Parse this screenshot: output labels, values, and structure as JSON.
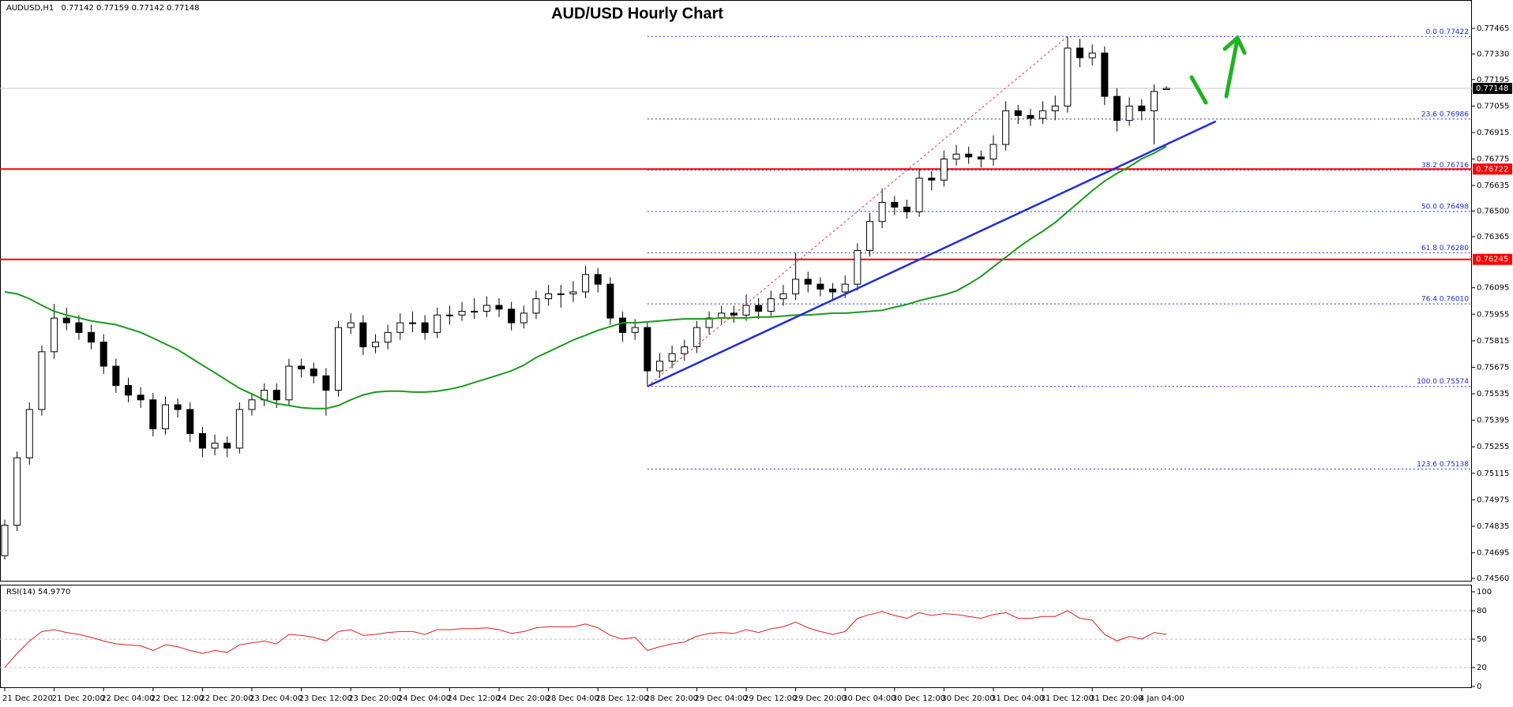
{
  "chart_data": [
    {
      "type": "candlestick",
      "symbol": "AUDUSD,H1",
      "title": "AUD/USD Hourly Chart",
      "categories": [
        "21 Dec 2020",
        null,
        null,
        null,
        "21 Dec 20:00",
        null,
        null,
        null,
        "22 Dec 04:00",
        null,
        null,
        null,
        "22 Dec 12:00",
        null,
        null,
        null,
        "22 Dec 20:00",
        null,
        null,
        null,
        "23 Dec 04:00",
        null,
        null,
        null,
        "23 Dec 12:00",
        null,
        null,
        null,
        "23 Dec 20:00",
        null,
        null,
        null,
        "24 Dec 04:00",
        null,
        null,
        null,
        "24 Dec 12:00",
        null,
        null,
        null,
        "24 Dec 20:00",
        null,
        null,
        null,
        "28 Dec 04:00",
        null,
        null,
        null,
        "28 Dec 12:00",
        null,
        null,
        null,
        "28 Dec 20:00",
        null,
        null,
        null,
        "29 Dec 04:00",
        null,
        null,
        null,
        "29 Dec 12:00",
        null,
        null,
        null,
        "29 Dec 20:00",
        null,
        null,
        null,
        "30 Dec 04:00",
        null,
        null,
        null,
        "30 Dec 12:00",
        null,
        null,
        null,
        "30 Dec 20:00",
        null,
        null,
        null,
        "31 Dec 04:00",
        null,
        null,
        null,
        "31 Dec 12:00",
        null,
        null,
        null,
        "31 Dec 20:00",
        null,
        null,
        null,
        "4 Jan 04:00",
        null,
        null
      ],
      "ohlc": [
        [
          0.7468,
          0.7487,
          0.7466,
          0.74841
        ],
        [
          0.74841,
          0.7523,
          0.7481,
          0.75197
        ],
        [
          0.75197,
          0.7549,
          0.7516,
          0.75452
        ],
        [
          0.75452,
          0.7579,
          0.7542,
          0.75757
        ],
        [
          0.75757,
          0.7601,
          0.7572,
          0.75935
        ],
        [
          0.75935,
          0.7599,
          0.7587,
          0.7591
        ],
        [
          0.7591,
          0.7595,
          0.7582,
          0.75859
        ],
        [
          0.75859,
          0.759,
          0.7577,
          0.75808
        ],
        [
          0.75808,
          0.7585,
          0.7564,
          0.75681
        ],
        [
          0.75681,
          0.7572,
          0.7554,
          0.75579
        ],
        [
          0.75579,
          0.7562,
          0.7549,
          0.75528
        ],
        [
          0.75528,
          0.7557,
          0.7546,
          0.75503
        ],
        [
          0.75503,
          0.7554,
          0.7531,
          0.7535
        ],
        [
          0.7535,
          0.7552,
          0.7532,
          0.75477
        ],
        [
          0.75477,
          0.7551,
          0.7541,
          0.75452
        ],
        [
          0.75452,
          0.7549,
          0.7528,
          0.75325
        ],
        [
          0.75325,
          0.7536,
          0.752,
          0.75248
        ],
        [
          0.75248,
          0.7532,
          0.7521,
          0.75274
        ],
        [
          0.75274,
          0.7531,
          0.752,
          0.75248
        ],
        [
          0.75248,
          0.7549,
          0.7522,
          0.75452
        ],
        [
          0.75452,
          0.7554,
          0.7542,
          0.75503
        ],
        [
          0.75503,
          0.7559,
          0.7547,
          0.75554
        ],
        [
          0.75554,
          0.7559,
          0.7546,
          0.75503
        ],
        [
          0.75503,
          0.7572,
          0.7547,
          0.75681
        ],
        [
          0.75681,
          0.7572,
          0.7562,
          0.75666
        ],
        [
          0.75666,
          0.757,
          0.7559,
          0.7563
        ],
        [
          0.7563,
          0.7567,
          0.7542,
          0.75554
        ],
        [
          0.75554,
          0.7592,
          0.7552,
          0.75885
        ],
        [
          0.75885,
          0.7596,
          0.7585,
          0.7591
        ],
        [
          0.7591,
          0.7595,
          0.7574,
          0.75783
        ],
        [
          0.75783,
          0.7585,
          0.7575,
          0.75808
        ],
        [
          0.75808,
          0.759,
          0.7577,
          0.75859
        ],
        [
          0.75859,
          0.7596,
          0.7582,
          0.7591
        ],
        [
          0.7591,
          0.7597,
          0.7586,
          0.7591
        ],
        [
          0.7591,
          0.7595,
          0.7582,
          0.75859
        ],
        [
          0.75859,
          0.7599,
          0.7583,
          0.75951
        ],
        [
          0.75951,
          0.76,
          0.759,
          0.75951
        ],
        [
          0.75951,
          0.7602,
          0.7592,
          0.75971
        ],
        [
          0.75971,
          0.7604,
          0.7593,
          0.75971
        ],
        [
          0.75971,
          0.7605,
          0.7594,
          0.76002
        ],
        [
          0.76002,
          0.7604,
          0.7594,
          0.75982
        ],
        [
          0.75982,
          0.7602,
          0.7587,
          0.7591
        ],
        [
          0.7591,
          0.76,
          0.7588,
          0.75961
        ],
        [
          0.75961,
          0.7608,
          0.7593,
          0.76037
        ],
        [
          0.76037,
          0.7611,
          0.76,
          0.76063
        ],
        [
          0.76063,
          0.7611,
          0.7599,
          0.76063
        ],
        [
          0.76063,
          0.7613,
          0.7602,
          0.76073
        ],
        [
          0.76073,
          0.7621,
          0.7604,
          0.76165
        ],
        [
          0.76165,
          0.762,
          0.7607,
          0.76114
        ],
        [
          0.76114,
          0.7615,
          0.759,
          0.75935
        ],
        [
          0.75935,
          0.7597,
          0.7581,
          0.75859
        ],
        [
          0.75859,
          0.7593,
          0.7582,
          0.75885
        ],
        [
          0.75885,
          0.7591,
          0.75574,
          0.75656
        ],
        [
          0.75656,
          0.7575,
          0.7562,
          0.75707
        ],
        [
          0.75707,
          0.7579,
          0.7567,
          0.75747
        ],
        [
          0.75747,
          0.7582,
          0.7571,
          0.75783
        ],
        [
          0.75783,
          0.7592,
          0.7575,
          0.75885
        ],
        [
          0.75885,
          0.7597,
          0.7585,
          0.75935
        ],
        [
          0.75935,
          0.76,
          0.759,
          0.75961
        ],
        [
          0.75961,
          0.76,
          0.7591,
          0.75951
        ],
        [
          0.75951,
          0.7606,
          0.7592,
          0.76002
        ],
        [
          0.76002,
          0.7604,
          0.7593,
          0.75971
        ],
        [
          0.75971,
          0.7608,
          0.7594,
          0.76037
        ],
        [
          0.76037,
          0.7611,
          0.76,
          0.76063
        ],
        [
          0.76063,
          0.7628,
          0.7603,
          0.7614
        ],
        [
          0.7614,
          0.7618,
          0.7607,
          0.76114
        ],
        [
          0.76114,
          0.7615,
          0.7605,
          0.76088
        ],
        [
          0.76088,
          0.7612,
          0.7603,
          0.76073
        ],
        [
          0.76073,
          0.7616,
          0.7604,
          0.76114
        ],
        [
          0.76114,
          0.7633,
          0.7608,
          0.76292
        ],
        [
          0.76292,
          0.7649,
          0.7626,
          0.76445
        ],
        [
          0.76445,
          0.7662,
          0.7641,
          0.76546
        ],
        [
          0.76546,
          0.7658,
          0.7648,
          0.76521
        ],
        [
          0.76521,
          0.7656,
          0.7646,
          0.76496
        ],
        [
          0.76496,
          0.7672,
          0.7647,
          0.76674
        ],
        [
          0.76674,
          0.7671,
          0.7661,
          0.76664
        ],
        [
          0.76664,
          0.7682,
          0.7663,
          0.76775
        ],
        [
          0.76775,
          0.7685,
          0.7674,
          0.76801
        ],
        [
          0.76801,
          0.7684,
          0.7675,
          0.76786
        ],
        [
          0.76786,
          0.7682,
          0.7673,
          0.76775
        ],
        [
          0.76775,
          0.769,
          0.7674,
          0.76852
        ],
        [
          0.76852,
          0.7708,
          0.7682,
          0.7703
        ],
        [
          0.7703,
          0.7706,
          0.7696,
          0.77005
        ],
        [
          0.77005,
          0.7704,
          0.7695,
          0.7699
        ],
        [
          0.7699,
          0.7708,
          0.7696,
          0.7703
        ],
        [
          0.7703,
          0.7711,
          0.7698,
          0.77055
        ],
        [
          0.77055,
          0.77422,
          0.7702,
          0.77361
        ],
        [
          0.77361,
          0.7741,
          0.7726,
          0.7731
        ],
        [
          0.7731,
          0.7738,
          0.7727,
          0.77335
        ],
        [
          0.77335,
          0.7737,
          0.7706,
          0.77106
        ],
        [
          0.77106,
          0.7715,
          0.7692,
          0.76979
        ],
        [
          0.76979,
          0.771,
          0.7695,
          0.77055
        ],
        [
          0.77055,
          0.7709,
          0.7698,
          0.7703
        ],
        [
          0.7703,
          0.7717,
          0.76852,
          0.77132
        ],
        [
          0.77142,
          0.77159,
          0.77142,
          0.77148
        ]
      ],
      "bull_color": "#ffffff",
      "bear_color": "#000000",
      "ma": {
        "color": "#1a9a1a",
        "values": [
          0.76073,
          0.76063,
          0.76037,
          0.76002,
          0.75971,
          0.75951,
          0.75936,
          0.7592,
          0.7591,
          0.759,
          0.7588,
          0.75859,
          0.75829,
          0.75798,
          0.75768,
          0.75727,
          0.75686,
          0.75646,
          0.75605,
          0.75564,
          0.75534,
          0.75503,
          0.75483,
          0.75473,
          0.75462,
          0.75457,
          0.75457,
          0.75473,
          0.75503,
          0.75529,
          0.75544,
          0.75549,
          0.75549,
          0.75544,
          0.75544,
          0.75549,
          0.75559,
          0.75574,
          0.75595,
          0.75615,
          0.75635,
          0.75656,
          0.75686,
          0.75727,
          0.75757,
          0.75788,
          0.75819,
          0.75844,
          0.7587,
          0.7589,
          0.7591,
          0.7591,
          0.75915,
          0.7592,
          0.75926,
          0.75931,
          0.75931,
          0.75931,
          0.75936,
          0.75936,
          0.75936,
          0.75941,
          0.75941,
          0.75946,
          0.75951,
          0.75951,
          0.75956,
          0.75961,
          0.75961,
          0.75966,
          0.75971,
          0.75976,
          0.75992,
          0.76007,
          0.76027,
          0.76043,
          0.76058,
          0.76078,
          0.76114,
          0.76155,
          0.76206,
          0.76256,
          0.76307,
          0.76353,
          0.76394,
          0.7644,
          0.76496,
          0.76552,
          0.76608,
          0.76659,
          0.76699,
          0.76735,
          0.76776,
          0.76806,
          0.76842
        ]
      },
      "trendline": {
        "color": "#1d2fd6",
        "x": [
          52,
          98
        ],
        "values": [
          0.75574,
          0.76974
        ]
      },
      "fib_diagonal": {
        "color": "#e23b3b",
        "x": [
          52,
          86
        ],
        "values": [
          0.75574,
          0.77422
        ]
      },
      "fib_color": "#1a2ccf",
      "fib_levels": [
        {
          "label": "0.0 0.77422",
          "value": 0.77422
        },
        {
          "label": "23.6 0.76986",
          "value": 0.76986
        },
        {
          "label": "38.2 0.76716",
          "value": 0.76716
        },
        {
          "label": "50.0 0.76498",
          "value": 0.76498
        },
        {
          "label": "61.8 0.76280",
          "value": 0.7628
        },
        {
          "label": "76.4 0.76010",
          "value": 0.7601
        },
        {
          "label": "100.0 0.75574",
          "value": 0.75574
        },
        {
          "label": "123.6 0.75138",
          "value": 0.75138
        }
      ],
      "levels_color": "#ff0000",
      "levels": [
        0.76722,
        0.76245
      ],
      "ylim": [
        0.7456,
        0.7759
      ],
      "yticks": [
        0.77465,
        {
          "value": 0.7733,
          "label": "0.77330"
        },
        0.77195,
        0.77055,
        0.76915,
        0.76775,
        0.76635,
        {
          "value": 0.765,
          "label": "0.76500"
        },
        0.76365,
        0.76095,
        0.75955,
        0.75815,
        0.75675,
        0.75535,
        0.75395,
        0.75255,
        0.75115,
        0.74975,
        0.74835,
        0.74695,
        {
          "value": 0.7456,
          "label": "0.74560"
        }
      ]
    },
    {
      "type": "line",
      "name": "RSI(14)",
      "last_label": "54.9770",
      "color": "#e02020",
      "values": [
        20,
        35,
        48,
        58,
        60,
        57,
        55,
        52,
        48,
        45,
        44,
        43,
        38,
        44,
        42,
        38,
        35,
        38,
        36,
        44,
        46,
        48,
        45,
        55,
        54,
        52,
        48,
        58,
        60,
        54,
        55,
        57,
        58,
        58,
        55,
        60,
        60,
        61,
        61,
        62,
        60,
        56,
        58,
        62,
        63,
        63,
        63,
        66,
        62,
        54,
        50,
        52,
        38,
        42,
        45,
        47,
        53,
        56,
        57,
        56,
        60,
        57,
        61,
        63,
        68,
        62,
        58,
        55,
        58,
        72,
        76,
        79,
        75,
        72,
        78,
        75,
        77,
        76,
        74,
        72,
        76,
        78,
        72,
        72,
        74,
        74,
        80,
        72,
        70,
        55,
        48,
        53,
        50,
        57,
        54.977
      ],
      "ylim": [
        0,
        100
      ],
      "yticks": [
        0,
        20,
        50,
        80,
        100
      ]
    }
  ]
}
